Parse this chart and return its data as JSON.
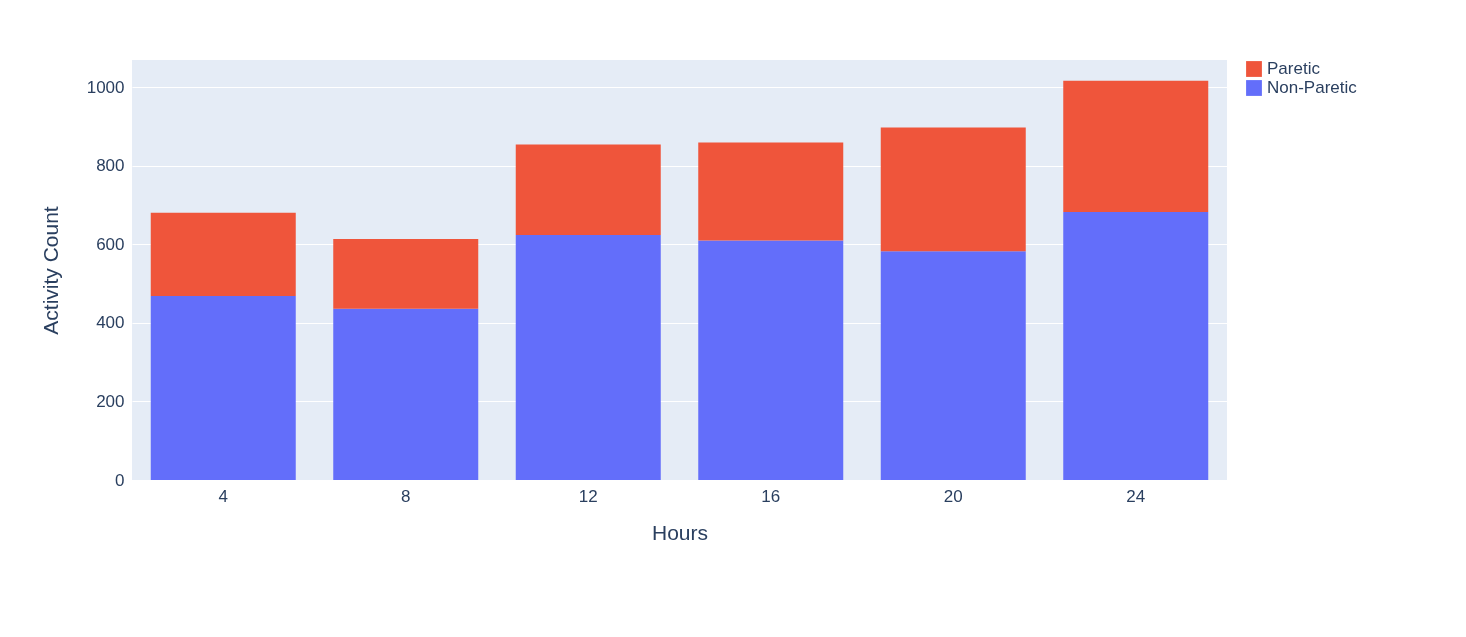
{
  "chart_data": {
    "type": "bar",
    "stacked": true,
    "xlabel": "Hours",
    "ylabel": "Activity Count",
    "categories": [
      "4",
      "8",
      "12",
      "16",
      "20",
      "24"
    ],
    "series": [
      {
        "name": "Non-Paretic",
        "color": "#636efa",
        "values": [
          469,
          436,
          624,
          610,
          583,
          683
        ]
      },
      {
        "name": "Paretic",
        "color": "#ef553b",
        "values": [
          212,
          178,
          231,
          250,
          315,
          334
        ]
      }
    ],
    "ylim": [
      0,
      1070
    ],
    "yticks": [
      0,
      200,
      400,
      600,
      800,
      1000
    ],
    "grid": "y",
    "legend": "top right"
  }
}
